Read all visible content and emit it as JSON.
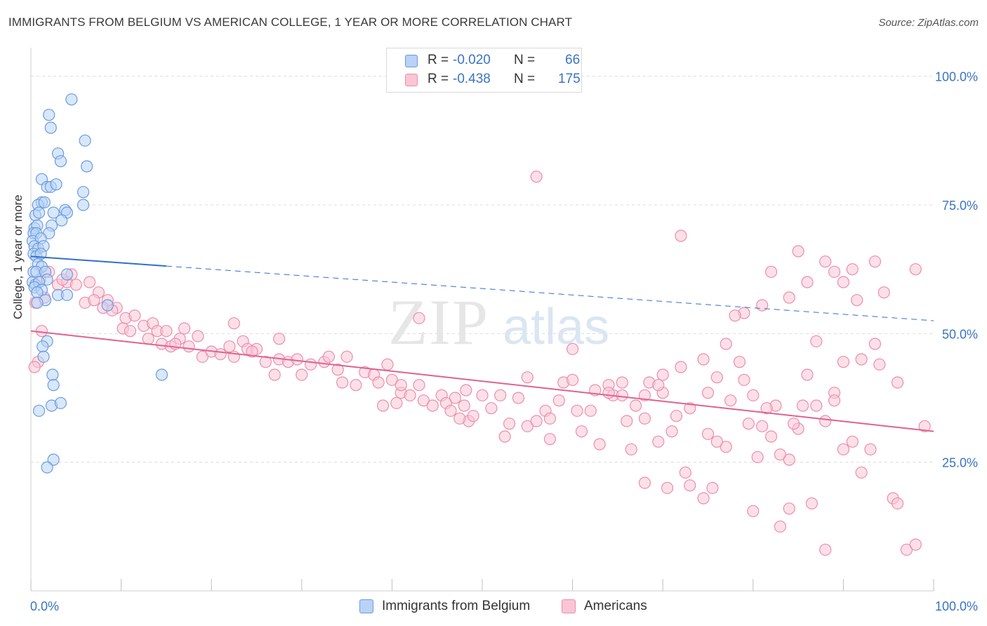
{
  "title": "IMMIGRANTS FROM BELGIUM VS AMERICAN COLLEGE, 1 YEAR OR MORE CORRELATION CHART",
  "source": "Source: ZipAtlas.com",
  "watermark": {
    "zip": "ZIP",
    "atlas": "atlas"
  },
  "legend": {
    "rows": [
      {
        "r_label": "R =",
        "r_value": "-0.020",
        "n_label": "N =",
        "n_value": "66",
        "fill": "#b8d3f5",
        "stroke": "#6a9be0"
      },
      {
        "r_label": "R =",
        "r_value": "-0.438",
        "n_label": "N =",
        "n_value": "175",
        "fill": "#f9c6d6",
        "stroke": "#ee8cab"
      }
    ]
  },
  "bottom_legend": [
    {
      "label": "Immigrants from Belgium",
      "fill": "#b8d3f5",
      "stroke": "#6a9be0"
    },
    {
      "label": "Americans",
      "fill": "#f9c6d6",
      "stroke": "#ee8cab"
    }
  ],
  "chart_data": {
    "type": "scatter",
    "ylabel": "College, 1 year or more",
    "xlim": [
      0,
      100
    ],
    "ylim": [
      0,
      105
    ],
    "x_tick_labels": [
      "0.0%",
      "100.0%"
    ],
    "y_tick_labels": [
      "100.0%",
      "75.0%",
      "50.0%",
      "25.0%"
    ],
    "y_ticks": [
      100,
      75,
      50,
      25
    ],
    "colors": {
      "blue_fill": "#b8d3f5",
      "blue_stroke": "#6a9be0",
      "blue_line": "#2f6fd0",
      "pink_fill": "#f9c6d6",
      "pink_stroke": "#ee8cab",
      "pink_line": "#e0628f",
      "tick_text": "#3a73c4"
    },
    "series": [
      {
        "name": "Immigrants from Belgium",
        "color": "blue",
        "trend": {
          "x0": 0,
          "y0": 65.0,
          "x1": 100,
          "y1": 52.5,
          "solid_until": 15
        },
        "points": [
          [
            4.5,
            95.5
          ],
          [
            2,
            92.5
          ],
          [
            2.2,
            90
          ],
          [
            6,
            87.5
          ],
          [
            3,
            85
          ],
          [
            6.2,
            82.5
          ],
          [
            3.3,
            83.5
          ],
          [
            1.2,
            80
          ],
          [
            1.8,
            78.5
          ],
          [
            2.2,
            78.5
          ],
          [
            2.8,
            79
          ],
          [
            5.8,
            77.5
          ],
          [
            1.2,
            75.5
          ],
          [
            0.8,
            75
          ],
          [
            1.5,
            75.5
          ],
          [
            5.8,
            75
          ],
          [
            3.8,
            74
          ],
          [
            2.5,
            73.5
          ],
          [
            4,
            73.5
          ],
          [
            0.5,
            73
          ],
          [
            0.9,
            73.5
          ],
          [
            3.4,
            72
          ],
          [
            0.4,
            70.5
          ],
          [
            0.7,
            71
          ],
          [
            2.3,
            71
          ],
          [
            0.3,
            69.5
          ],
          [
            0.6,
            69.5
          ],
          [
            2,
            69.5
          ],
          [
            0.2,
            68
          ],
          [
            1.1,
            68.5
          ],
          [
            0.4,
            67
          ],
          [
            0.8,
            66.5
          ],
          [
            1.4,
            67
          ],
          [
            0.3,
            65.5
          ],
          [
            0.6,
            65
          ],
          [
            1.1,
            65.5
          ],
          [
            0.8,
            63.5
          ],
          [
            1.2,
            63
          ],
          [
            0.3,
            62
          ],
          [
            0.6,
            62
          ],
          [
            1.6,
            62
          ],
          [
            4,
            61.5
          ],
          [
            1.8,
            60.5
          ],
          [
            0.2,
            60
          ],
          [
            0.5,
            59.5
          ],
          [
            0.9,
            60
          ],
          [
            0.4,
            59
          ],
          [
            1.2,
            58.5
          ],
          [
            0.7,
            58
          ],
          [
            3,
            57.5
          ],
          [
            4,
            57.5
          ],
          [
            1.6,
            56.5
          ],
          [
            0.7,
            56
          ],
          [
            8.5,
            55.5
          ],
          [
            1.8,
            48.5
          ],
          [
            1.3,
            47.5
          ],
          [
            1.4,
            45.5
          ],
          [
            2.4,
            42
          ],
          [
            2.5,
            40
          ],
          [
            14.5,
            42
          ],
          [
            2.3,
            36
          ],
          [
            3.3,
            36.5
          ],
          [
            0.9,
            35
          ],
          [
            2.5,
            25.5
          ],
          [
            1.8,
            24
          ]
        ]
      },
      {
        "name": "Americans",
        "color": "pink",
        "trend": {
          "x0": 0,
          "y0": 50.5,
          "x1": 100,
          "y1": 31
        },
        "points": [
          [
            0.5,
            56
          ],
          [
            1.5,
            57
          ],
          [
            3,
            59.5
          ],
          [
            4,
            60
          ],
          [
            5,
            59.5
          ],
          [
            6.5,
            60
          ],
          [
            7.5,
            58
          ],
          [
            8.5,
            56.5
          ],
          [
            9.5,
            55
          ],
          [
            2,
            62
          ],
          [
            4.5,
            61.5
          ],
          [
            1,
            60.5
          ],
          [
            3.5,
            60.5
          ],
          [
            6,
            56
          ],
          [
            7,
            56.5
          ],
          [
            8,
            55
          ],
          [
            1.2,
            50.5
          ],
          [
            0.8,
            44.5
          ],
          [
            0.4,
            43.5
          ],
          [
            9,
            54.5
          ],
          [
            10.5,
            53
          ],
          [
            11.5,
            53.5
          ],
          [
            12.5,
            51.5
          ],
          [
            10.2,
            51
          ],
          [
            11,
            50.5
          ],
          [
            13.5,
            52
          ],
          [
            14,
            50.5
          ],
          [
            15,
            50.5
          ],
          [
            13,
            49
          ],
          [
            16.5,
            49
          ],
          [
            17,
            51
          ],
          [
            14.5,
            48
          ],
          [
            15.5,
            47.5
          ],
          [
            16,
            48
          ],
          [
            17.5,
            47.5
          ],
          [
            18.5,
            49.5
          ],
          [
            19,
            45.5
          ],
          [
            20,
            46.5
          ],
          [
            21,
            46
          ],
          [
            22,
            47.5
          ],
          [
            22.5,
            45.5
          ],
          [
            23.5,
            48.5
          ],
          [
            24,
            47
          ],
          [
            25,
            47
          ],
          [
            26,
            44.5
          ],
          [
            24.5,
            46.5
          ],
          [
            27.5,
            45
          ],
          [
            27,
            42
          ],
          [
            28.5,
            44.5
          ],
          [
            29.5,
            45
          ],
          [
            30,
            42
          ],
          [
            31,
            44
          ],
          [
            32.5,
            44.5
          ],
          [
            33,
            45.5
          ],
          [
            34,
            43
          ],
          [
            35,
            45.5
          ],
          [
            36,
            40
          ],
          [
            37,
            42.5
          ],
          [
            38,
            42
          ],
          [
            38.5,
            40.5
          ],
          [
            39.5,
            44
          ],
          [
            40,
            41
          ],
          [
            40.5,
            36.5
          ],
          [
            41,
            38.5
          ],
          [
            42,
            38
          ],
          [
            43,
            40
          ],
          [
            43.5,
            37
          ],
          [
            44.5,
            36
          ],
          [
            45.5,
            38
          ],
          [
            46,
            36.5
          ],
          [
            46.5,
            35
          ],
          [
            47,
            37.5
          ],
          [
            48,
            36
          ],
          [
            48.5,
            33
          ],
          [
            49,
            34
          ],
          [
            50,
            38
          ],
          [
            51,
            35.5
          ],
          [
            52,
            38
          ],
          [
            52.5,
            30
          ],
          [
            53,
            32.5
          ],
          [
            54,
            37.5
          ],
          [
            55,
            32
          ],
          [
            56,
            33
          ],
          [
            57,
            35
          ],
          [
            57.5,
            33.5
          ],
          [
            58.5,
            37
          ],
          [
            59,
            40.5
          ],
          [
            60,
            41
          ],
          [
            61,
            31
          ],
          [
            62,
            35
          ],
          [
            63,
            28.5
          ],
          [
            64,
            40
          ],
          [
            64.5,
            38
          ],
          [
            65.5,
            38
          ],
          [
            66,
            33
          ],
          [
            67,
            36
          ],
          [
            68,
            38
          ],
          [
            68.5,
            40.5
          ],
          [
            69.5,
            29
          ],
          [
            70,
            42
          ],
          [
            71,
            31
          ],
          [
            72,
            43.5
          ],
          [
            73,
            35.5
          ],
          [
            74.5,
            45
          ],
          [
            75,
            38.5
          ],
          [
            76,
            41.5
          ],
          [
            77.5,
            37
          ],
          [
            78.5,
            44.5
          ],
          [
            79,
            41
          ],
          [
            80,
            38
          ],
          [
            81,
            32
          ],
          [
            82,
            30
          ],
          [
            82.5,
            36
          ],
          [
            83,
            26.5
          ],
          [
            84,
            25.5
          ],
          [
            85,
            31.5
          ],
          [
            86,
            42
          ],
          [
            87,
            36
          ],
          [
            88,
            33
          ],
          [
            89,
            38.5
          ],
          [
            90,
            44.5
          ],
          [
            27.5,
            49
          ],
          [
            22.5,
            52
          ],
          [
            34.5,
            40.5
          ],
          [
            48.2,
            39
          ],
          [
            55,
            41.5
          ],
          [
            64,
            38.5
          ],
          [
            60,
            47
          ],
          [
            43,
            53
          ],
          [
            57.5,
            29.5
          ],
          [
            60.5,
            35
          ],
          [
            62.5,
            39
          ],
          [
            39,
            36
          ],
          [
            41,
            40
          ],
          [
            47.5,
            33.5
          ],
          [
            65.5,
            40.5
          ],
          [
            70,
            38.5
          ],
          [
            71.5,
            34
          ],
          [
            75,
            30.5
          ],
          [
            77,
            28
          ],
          [
            79.5,
            32.5
          ],
          [
            80.5,
            26
          ],
          [
            81.5,
            35.5
          ],
          [
            66.5,
            27.5
          ],
          [
            68,
            21
          ],
          [
            70.5,
            20
          ],
          [
            73,
            20.5
          ],
          [
            74.5,
            18
          ],
          [
            75.5,
            20
          ],
          [
            80,
            15.5
          ],
          [
            83,
            12.5
          ],
          [
            84,
            16
          ],
          [
            86.5,
            17
          ],
          [
            90,
            27.5
          ],
          [
            92,
            23
          ],
          [
            93,
            27.5
          ],
          [
            95.5,
            18
          ],
          [
            96,
            17
          ],
          [
            97,
            8
          ],
          [
            98,
            9
          ],
          [
            88,
            8
          ],
          [
            92,
            45
          ],
          [
            93.5,
            48
          ],
          [
            91.5,
            56.5
          ],
          [
            87,
            48.5
          ],
          [
            82,
            62
          ],
          [
            84,
            57
          ],
          [
            85,
            66
          ],
          [
            86,
            60
          ],
          [
            88,
            64
          ],
          [
            89,
            62
          ],
          [
            90,
            60
          ],
          [
            79,
            54
          ],
          [
            72,
            69
          ],
          [
            56,
            80.5
          ],
          [
            98,
            62.5
          ],
          [
            93.5,
            64
          ],
          [
            94.5,
            58
          ],
          [
            91,
            62.5
          ],
          [
            85.5,
            36
          ],
          [
            89,
            37
          ],
          [
            91,
            29
          ],
          [
            94,
            44
          ],
          [
            96,
            40.5
          ],
          [
            99,
            32
          ],
          [
            81,
            55.5
          ],
          [
            77,
            48
          ],
          [
            78,
            53.5
          ],
          [
            68,
            33.5
          ],
          [
            69.5,
            40
          ],
          [
            72.5,
            23
          ],
          [
            76,
            29
          ],
          [
            84.5,
            32.5
          ]
        ]
      }
    ]
  }
}
